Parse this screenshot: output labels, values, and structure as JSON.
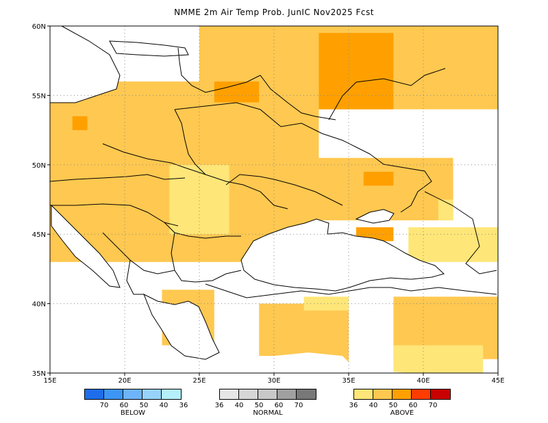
{
  "title": "NMME 2m Air Temp Prob. JunIC  Nov2025 Fcst",
  "map": {
    "lon_range": [
      15,
      45
    ],
    "lat_range": [
      35,
      60
    ],
    "lon_labels": [
      "15E",
      "20E",
      "25E",
      "30E",
      "35E",
      "40E",
      "45E"
    ],
    "lat_labels": [
      "35N",
      "40N",
      "45N",
      "50N",
      "55N",
      "60N"
    ],
    "gridlines": "dotted"
  },
  "legend": {
    "below": {
      "name": "BELOW",
      "labels": [
        "70",
        "60",
        "50",
        "40",
        "36"
      ],
      "colors": [
        "#1e6eeb",
        "#3c96f5",
        "#6eb4fa",
        "#96d2fa",
        "#b4f0fa"
      ]
    },
    "normal": {
      "name": "NORMAL",
      "labels": [
        "36",
        "40",
        "50",
        "60",
        "70"
      ],
      "colors": [
        "#e6e6e6",
        "#d6d6d6",
        "#c8c8c8",
        "#a0a0a0",
        "#787878"
      ]
    },
    "above": {
      "name": "ABOVE",
      "labels": [
        "36",
        "40",
        "50",
        "60",
        "70"
      ],
      "colors": [
        "#ffe678",
        "#ffc850",
        "#ffa000",
        "#ff3c00",
        "#c80000"
      ]
    }
  }
}
